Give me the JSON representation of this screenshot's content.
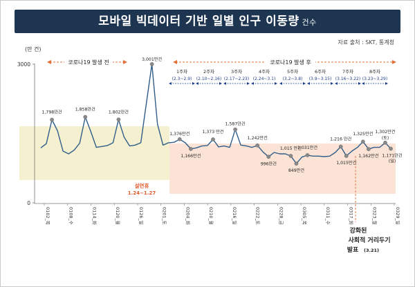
{
  "title": {
    "main": "모바일 빅데이터 기반 일별 인구 이동량",
    "suffix": "건수"
  },
  "source": "자료 출처 : SKT, 통계청",
  "colors": {
    "title_bg": "#1d3550",
    "pre_band": "#f5f0cf",
    "post_band": "#fbe3d6",
    "line": "#2f5d8a",
    "marker": "#8a8a8a",
    "arrow": "#e46f35",
    "holiday": "#e05a2a",
    "week_text": "#1d3f8a"
  },
  "chart_data": {
    "type": "line",
    "ylabel": "(만 건)",
    "ylim": [
      0,
      3000
    ],
    "yticks": [
      0,
      3000
    ],
    "x_tick_labels": [
      "0102_목",
      "0108_수",
      "0114_화",
      "0120_월",
      "0126_일",
      "0201_토",
      "0204_화",
      "0210_월",
      "0216_일",
      "0222_토",
      "0228_금",
      "0305_목",
      "0311_수",
      "0317_화",
      "0323_월",
      "0329_일"
    ],
    "series": [
      {
        "values": [
          1190,
          1280,
          1798,
          1560,
          1120,
          1060,
          1140,
          1290,
          1858,
          1540,
          1200,
          1220,
          1240,
          1300,
          1802,
          1420,
          1230,
          1250,
          1300,
          2150,
          3001,
          1700,
          1250,
          1300,
          1310,
          1376,
          1300,
          1166,
          1190,
          1230,
          1240,
          1373,
          1210,
          1230,
          1200,
          1587,
          1250,
          1230,
          1200,
          1242,
          1100,
          996,
          1090,
          1060,
          1060,
          1015,
          849,
          990,
          1031,
          1010,
          1010,
          1000,
          1010,
          1090,
          1216,
          1015,
          1120,
          1200,
          1325,
          1162,
          1200,
          1200,
          1302,
          1171
        ]
      }
    ],
    "annotations": {
      "labels": [
        {
          "text": "1,798만건"
        },
        {
          "text": "1,858만건"
        },
        {
          "text": "1,802만건"
        },
        {
          "text": "3,001만건"
        },
        {
          "text": "1,376만건"
        },
        {
          "text": "1,166만건"
        },
        {
          "text": "1,373 만건"
        },
        {
          "text": "1,587만건"
        },
        {
          "text": "1,242만건"
        },
        {
          "text": "996만건"
        },
        {
          "text": "1,015 만건"
        },
        {
          "text": "849만건"
        },
        {
          "text": "1,031만건"
        },
        {
          "text": "1,216 만건"
        },
        {
          "text": "1,015만건"
        },
        {
          "text": "1,325만건"
        },
        {
          "text": "1,162만건"
        },
        {
          "text": "1,302만건"
        },
        {
          "text": "(토)"
        },
        {
          "text": "1,171만건"
        },
        {
          "text": "(일)"
        }
      ],
      "periods": {
        "pre": "코로나19 발생 전",
        "post": "코로나19 발생 후"
      },
      "weeks": [
        {
          "label": "1주차",
          "range": "(2.3~2.9)"
        },
        {
          "label": "2주차",
          "range": "(2.10~2.16)"
        },
        {
          "label": "3주차",
          "range": "(2.17~2.23)"
        },
        {
          "label": "4주차",
          "range": "(2.24~3.1)"
        },
        {
          "label": "5주차",
          "range": "(3.2~3.8)"
        },
        {
          "label": "6주차",
          "range": "(3.9~3.15)"
        },
        {
          "label": "7주차",
          "range": "(3.16~3.22)"
        },
        {
          "label": "8주차",
          "range": "(3.23~3.29)"
        }
      ],
      "holiday": {
        "line1": "설연휴",
        "line2": "1.24~1.27"
      },
      "policy": {
        "line1": "강화된",
        "line2": "사회적 거리두기",
        "line3": "발표",
        "date": "(3.21)"
      }
    }
  }
}
